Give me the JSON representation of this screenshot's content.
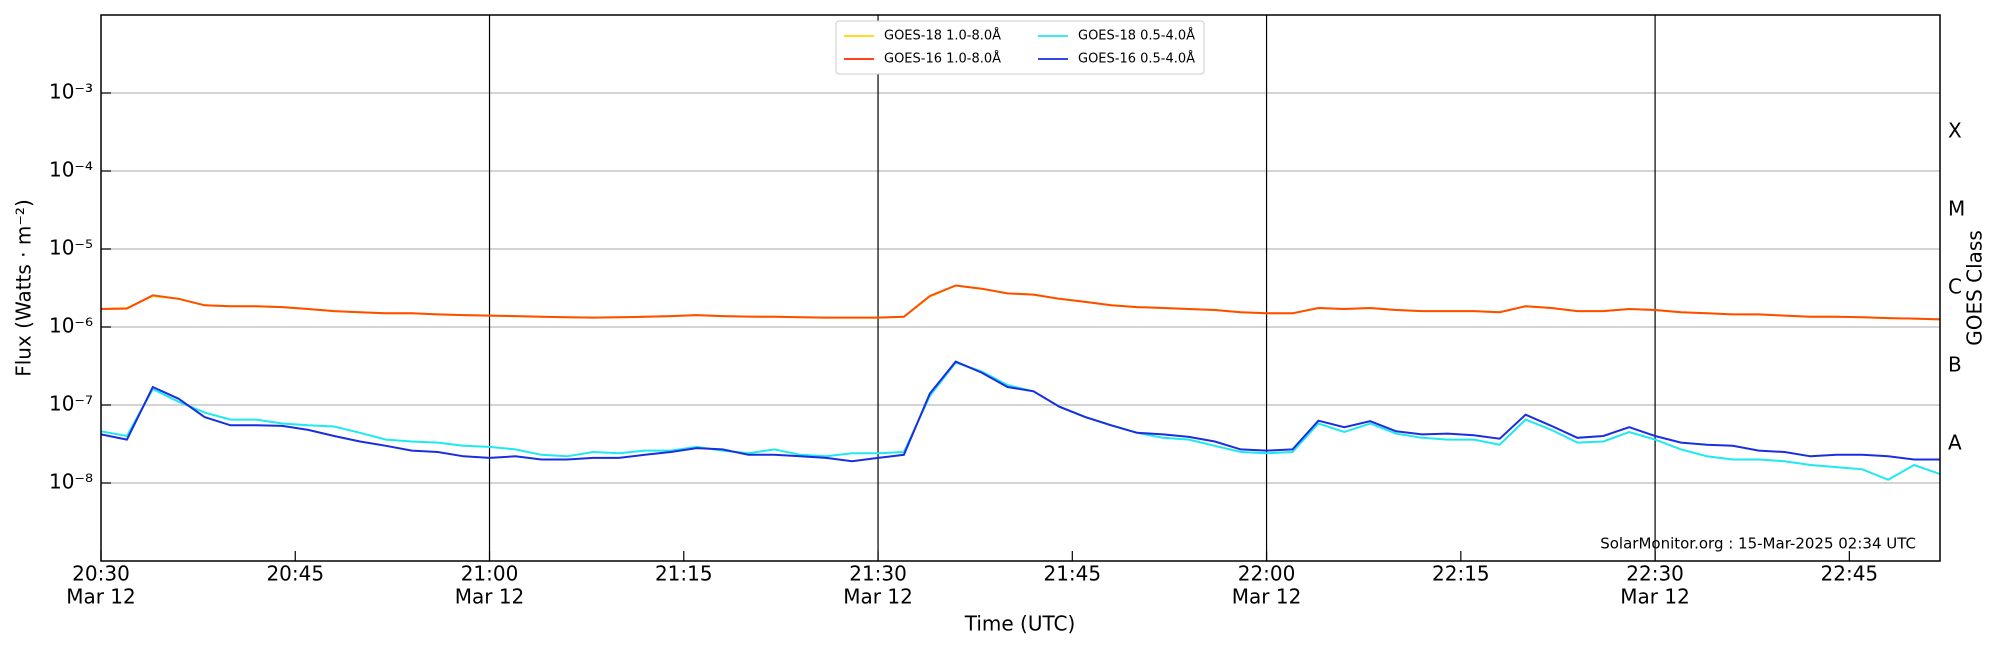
{
  "chart_data": {
    "type": "line",
    "xlabel": "Time (UTC)",
    "ylabel": "Flux (Watts · m⁻²)",
    "y2label": "GOES Class",
    "annotation": "SolarMonitor.org : 15-Mar-2025 02:34 UTC",
    "log_y": true,
    "grid": true,
    "legend": "upper center",
    "x": [
      "20:30",
      "20:32",
      "20:34",
      "20:36",
      "20:38",
      "20:40",
      "20:42",
      "20:44",
      "20:46",
      "20:48",
      "20:50",
      "20:52",
      "20:54",
      "20:56",
      "20:58",
      "21:00",
      "21:02",
      "21:04",
      "21:06",
      "21:08",
      "21:10",
      "21:12",
      "21:14",
      "21:16",
      "21:18",
      "21:20",
      "21:22",
      "21:24",
      "21:26",
      "21:28",
      "21:30",
      "21:32",
      "21:34",
      "21:36",
      "21:38",
      "21:40",
      "21:42",
      "21:44",
      "21:46",
      "21:48",
      "21:50",
      "21:52",
      "21:54",
      "21:56",
      "21:58",
      "22:00",
      "22:02",
      "22:04",
      "22:06",
      "22:08",
      "22:10",
      "22:12",
      "22:14",
      "22:16",
      "22:18",
      "22:20",
      "22:22",
      "22:24",
      "22:26",
      "22:28",
      "22:30",
      "22:32",
      "22:34",
      "22:36",
      "22:38",
      "22:40",
      "22:42",
      "22:44",
      "22:46",
      "22:48",
      "22:50",
      "22:52"
    ],
    "xlim": [
      "20:30",
      "22:52"
    ],
    "xticks": [
      "20:30",
      "20:45",
      "21:00",
      "21:15",
      "21:30",
      "21:45",
      "22:00",
      "22:15",
      "22:30",
      "22:45"
    ],
    "xtick_dates": [
      "Mar 12",
      null,
      "Mar 12",
      null,
      "Mar 12",
      null,
      "Mar 12",
      null,
      "Mar 12",
      null
    ],
    "vlines": [
      "21:00",
      "21:30",
      "22:00",
      "22:30"
    ],
    "ylim": [
      1e-09,
      0.01
    ],
    "yticks": [
      {
        "value": 1e-08,
        "label": "10⁻⁸"
      },
      {
        "value": 1e-07,
        "label": "10⁻⁷"
      },
      {
        "value": 1e-06,
        "label": "10⁻⁶"
      },
      {
        "value": 1e-05,
        "label": "10⁻⁵"
      },
      {
        "value": 0.0001,
        "label": "10⁻⁴"
      },
      {
        "value": 0.001,
        "label": "10⁻³"
      }
    ],
    "y2lim": [
      1e-09,
      0.01
    ],
    "y2ticks": [
      {
        "value": 3.16e-08,
        "label": "A"
      },
      {
        "value": 3.16e-07,
        "label": "B"
      },
      {
        "value": 3.16e-06,
        "label": "C"
      },
      {
        "value": 3.16e-05,
        "label": "M"
      },
      {
        "value": 0.000316,
        "label": "X"
      }
    ],
    "series": [
      {
        "name": "GOES-18 1.0-8.0Å",
        "color": "#ffd700",
        "values": [
          1.7e-06,
          1.75e-06,
          2.5e-06,
          2.3e-06,
          1.9e-06,
          1.85e-06,
          1.85e-06,
          1.8e-06,
          1.7e-06,
          1.6e-06,
          1.55e-06,
          1.5e-06,
          1.5e-06,
          1.45e-06,
          1.42e-06,
          1.4e-06,
          1.38e-06,
          1.35e-06,
          1.33e-06,
          1.32e-06,
          1.33e-06,
          1.35e-06,
          1.38e-06,
          1.42e-06,
          1.38e-06,
          1.36e-06,
          1.35e-06,
          1.33e-06,
          1.32e-06,
          1.32e-06,
          1.32e-06,
          1.35e-06,
          2.45e-06,
          3.4e-06,
          3.1e-06,
          2.7e-06,
          2.6e-06,
          2.3e-06,
          2.1e-06,
          1.9e-06,
          1.8e-06,
          1.75e-06,
          1.7e-06,
          1.65e-06,
          1.55e-06,
          1.5e-06,
          1.5e-06,
          1.75e-06,
          1.7e-06,
          1.75e-06,
          1.65e-06,
          1.6e-06,
          1.6e-06,
          1.6e-06,
          1.55e-06,
          1.85e-06,
          1.75e-06,
          1.6e-06,
          1.6e-06,
          1.7e-06,
          1.65e-06,
          1.55e-06,
          1.5e-06,
          1.45e-06,
          1.45e-06,
          1.4e-06,
          1.35e-06,
          1.35e-06,
          1.33e-06,
          1.3e-06,
          1.28e-06,
          1.25e-06
        ]
      },
      {
        "name": "GOES-16 1.0-8.0Å",
        "color": "#ff2a00",
        "values": [
          1.7e-06,
          1.72e-06,
          2.55e-06,
          2.3e-06,
          1.9e-06,
          1.85e-06,
          1.85e-06,
          1.8e-06,
          1.7e-06,
          1.6e-06,
          1.55e-06,
          1.5e-06,
          1.5e-06,
          1.45e-06,
          1.42e-06,
          1.4e-06,
          1.38e-06,
          1.35e-06,
          1.33e-06,
          1.32e-06,
          1.33e-06,
          1.35e-06,
          1.38e-06,
          1.42e-06,
          1.38e-06,
          1.36e-06,
          1.35e-06,
          1.33e-06,
          1.32e-06,
          1.32e-06,
          1.32e-06,
          1.35e-06,
          2.5e-06,
          3.4e-06,
          3.1e-06,
          2.7e-06,
          2.6e-06,
          2.3e-06,
          2.1e-06,
          1.9e-06,
          1.8e-06,
          1.75e-06,
          1.7e-06,
          1.65e-06,
          1.55e-06,
          1.5e-06,
          1.5e-06,
          1.75e-06,
          1.7e-06,
          1.75e-06,
          1.65e-06,
          1.6e-06,
          1.6e-06,
          1.6e-06,
          1.55e-06,
          1.85e-06,
          1.75e-06,
          1.6e-06,
          1.6e-06,
          1.7e-06,
          1.65e-06,
          1.55e-06,
          1.5e-06,
          1.45e-06,
          1.45e-06,
          1.4e-06,
          1.35e-06,
          1.35e-06,
          1.33e-06,
          1.3e-06,
          1.28e-06,
          1.25e-06
        ]
      },
      {
        "name": "GOES-18 0.5-4.0Å",
        "color": "#1ee8f0",
        "values": [
          4.6e-08,
          4e-08,
          1.6e-07,
          1.1e-07,
          8e-08,
          6.5e-08,
          6.5e-08,
          5.8e-08,
          5.5e-08,
          5.3e-08,
          4.4e-08,
          3.6e-08,
          3.4e-08,
          3.3e-08,
          3e-08,
          2.9e-08,
          2.7e-08,
          2.3e-08,
          2.2e-08,
          2.5e-08,
          2.4e-08,
          2.6e-08,
          2.6e-08,
          2.9e-08,
          2.6e-08,
          2.4e-08,
          2.7e-08,
          2.3e-08,
          2.2e-08,
          2.4e-08,
          2.4e-08,
          2.5e-08,
          1.3e-07,
          3.5e-07,
          2.7e-07,
          1.8e-07,
          1.5e-07,
          9.5e-08,
          7e-08,
          5.5e-08,
          4.4e-08,
          3.8e-08,
          3.6e-08,
          3e-08,
          2.5e-08,
          2.4e-08,
          2.5e-08,
          5.8e-08,
          4.5e-08,
          5.8e-08,
          4.3e-08,
          3.8e-08,
          3.6e-08,
          3.6e-08,
          3.1e-08,
          6.5e-08,
          4.8e-08,
          3.3e-08,
          3.4e-08,
          4.5e-08,
          3.6e-08,
          2.7e-08,
          2.2e-08,
          2e-08,
          2e-08,
          1.9e-08,
          1.7e-08,
          1.6e-08,
          1.5e-08,
          1.1e-08,
          1.7e-08,
          1.3e-08
        ]
      },
      {
        "name": "GOES-16 0.5-4.0Å",
        "color": "#1a2ee0",
        "values": [
          4.2e-08,
          3.6e-08,
          1.7e-07,
          1.2e-07,
          7e-08,
          5.5e-08,
          5.5e-08,
          5.4e-08,
          4.8e-08,
          4e-08,
          3.4e-08,
          3e-08,
          2.6e-08,
          2.5e-08,
          2.2e-08,
          2.1e-08,
          2.2e-08,
          2e-08,
          2e-08,
          2.1e-08,
          2.1e-08,
          2.3e-08,
          2.5e-08,
          2.8e-08,
          2.7e-08,
          2.3e-08,
          2.3e-08,
          2.2e-08,
          2.1e-08,
          1.9e-08,
          2.1e-08,
          2.3e-08,
          1.4e-07,
          3.6e-07,
          2.6e-07,
          1.7e-07,
          1.5e-07,
          9.5e-08,
          7e-08,
          5.5e-08,
          4.4e-08,
          4.2e-08,
          3.9e-08,
          3.4e-08,
          2.7e-08,
          2.6e-08,
          2.7e-08,
          6.3e-08,
          5.2e-08,
          6.2e-08,
          4.6e-08,
          4.2e-08,
          4.3e-08,
          4.1e-08,
          3.7e-08,
          7.5e-08,
          5.4e-08,
          3.8e-08,
          4e-08,
          5.2e-08,
          4e-08,
          3.3e-08,
          3.1e-08,
          3e-08,
          2.6e-08,
          2.5e-08,
          2.2e-08,
          2.3e-08,
          2.3e-08,
          2.2e-08,
          2e-08,
          2e-08
        ]
      }
    ]
  }
}
